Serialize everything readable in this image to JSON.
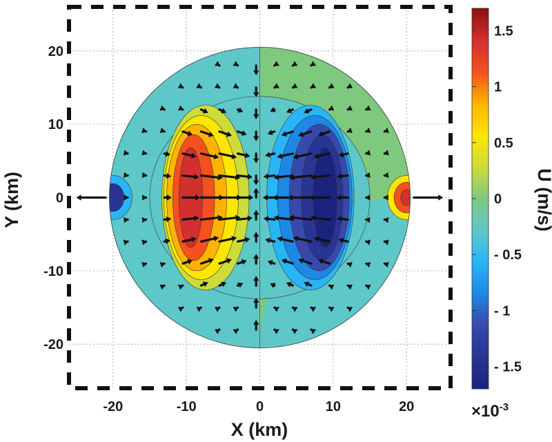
{
  "chart_data": {
    "type": "heatmap",
    "xlabel": "X (km)",
    "ylabel": "Y (km)",
    "xlim": [
      -26,
      26
    ],
    "ylim": [
      -26,
      26
    ],
    "xticks": [
      "-20",
      "-10",
      "0",
      "10",
      "20"
    ],
    "yticks": [
      "20",
      "10",
      "0",
      "-10",
      "-20"
    ],
    "xtick_values": [
      -20,
      -10,
      0,
      10,
      20
    ],
    "ytick_values": [
      20,
      10,
      0,
      -10,
      -20
    ],
    "domain_radius_km": 20.5,
    "grid": true,
    "colorbar": {
      "label": "U (m/s)",
      "multiplier": "×10",
      "exponent": "-3",
      "range": [
        -1.7,
        1.7
      ],
      "ticks": [
        "1.5",
        "1",
        "0.5",
        "0",
        "- 0.5",
        "- 1",
        "- 1.5"
      ],
      "tick_values": [
        1.5,
        1,
        0.5,
        0,
        -0.5,
        -1,
        -1.5
      ]
    },
    "colormap": [
      "#1a237e",
      "#283593",
      "#3949ab",
      "#1e88e5",
      "#29b6f6",
      "#5ec8c8",
      "#7fc97f",
      "#cddc39",
      "#ffe600",
      "#ffb300",
      "#f4511e",
      "#d32f2f",
      "#8b1010"
    ],
    "structures": [
      {
        "kind": "positive-lobe",
        "center": [
          -9,
          0
        ],
        "peak": 1.5
      },
      {
        "kind": "negative-lobe",
        "center": [
          8.5,
          0
        ],
        "peak": -1.5
      },
      {
        "kind": "edge-minimum",
        "center": [
          -20,
          0
        ],
        "peak": -1.4
      },
      {
        "kind": "edge-maximum",
        "center": [
          20,
          0
        ],
        "peak": 1.6
      }
    ],
    "vectors_note": "radial-convergent velocity arrows"
  }
}
